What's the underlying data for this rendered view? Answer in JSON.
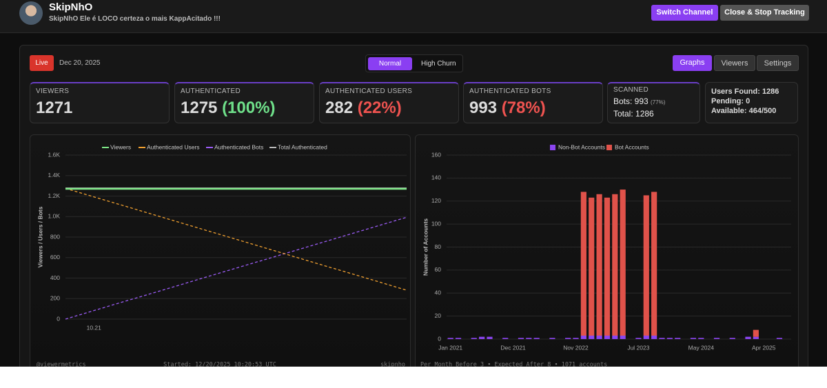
{
  "header": {
    "name": "SkipNhO",
    "subtitle": "SkipNhO Ele é LOCO certeza o mais KappAcitado !!!",
    "buttons": [
      "Switch Channel",
      "Close & Stop Tracking"
    ]
  },
  "toolbar": {
    "status": "Live",
    "date": "Dec 20, 2025",
    "modes": [
      "Normal",
      "High Churn"
    ],
    "tabs": [
      "Graphs",
      "Viewers",
      "Settings"
    ]
  },
  "stats": {
    "viewers": {
      "label": "VIEWERS",
      "value": 1271
    },
    "authenticated": {
      "label": "AUTHENTICATED",
      "value": 1275,
      "percent": "(100%)"
    },
    "authenticated_users": {
      "label": "AUTHENTICATED USERS",
      "value": 282,
      "percent": "(22%)"
    },
    "authenticated_bots": {
      "label": "AUTHENTICATED BOTS",
      "value": 993,
      "percent": "(78%)"
    },
    "scanned": {
      "label": "SCANNED",
      "bots": "Bots: 993",
      "bots_percent": "(77%)",
      "total": "Total: 1286"
    },
    "queue": [
      "Users Found: 1286",
      "Pending: 0",
      "Available: 464/500"
    ]
  },
  "footers": {
    "line": [
      "@viewermetrics",
      "Started: 12/20/2025 10:20:53 UTC",
      "skipnho"
    ],
    "bar": "Per Month Before 3 • Expected After 8 • 1071 accounts"
  },
  "chart_data": [
    {
      "type": "line",
      "categories": [
        null,
        "10.21",
        null,
        null,
        null,
        null,
        null,
        null,
        null,
        null,
        null,
        null,
        null
      ],
      "series": [
        {
          "name": "Viewers",
          "color": "#7ee787",
          "dashed": false,
          "values": [
            1271,
            1271,
            1271,
            1271,
            1271,
            1271,
            1271,
            1271,
            1271,
            1271,
            1271,
            1271,
            1271
          ]
        },
        {
          "name": "Authenticated Users",
          "color": "#f0a030",
          "dashed": true,
          "values": [
            1275,
            1192,
            1110,
            1027,
            944,
            861,
            779,
            696,
            613,
            530,
            448,
            365,
            282
          ]
        },
        {
          "name": "Authenticated Bots",
          "color": "#9b5cf6",
          "dashed": true,
          "values": [
            0,
            83,
            166,
            248,
            331,
            414,
            497,
            579,
            662,
            745,
            828,
            910,
            993
          ]
        },
        {
          "name": "Total Authenticated",
          "color": "#bbbbbb",
          "dashed": false,
          "values": [
            1275,
            1275,
            1275,
            1275,
            1275,
            1275,
            1275,
            1275,
            1275,
            1275,
            1275,
            1275,
            1275
          ]
        }
      ],
      "ylim": [
        0,
        1600
      ],
      "yticks": [
        0,
        200,
        400,
        600,
        800,
        {
          "value": 1000,
          "label": "1.0K"
        },
        {
          "value": 1200,
          "label": "1.2K"
        },
        {
          "value": 1400,
          "label": "1.4K"
        },
        {
          "value": 1600,
          "label": "1.6K"
        }
      ],
      "y_label": "Viewers / Users / Bots",
      "grid": true,
      "legend": "top"
    },
    {
      "type": "bar",
      "stacked": true,
      "categories": [
        "Jan 2021",
        null,
        null,
        null,
        null,
        null,
        null,
        null,
        "Dec 2021",
        null,
        null,
        null,
        null,
        null,
        null,
        null,
        "Nov 2022",
        null,
        null,
        null,
        null,
        null,
        null,
        null,
        "Jul 2023",
        null,
        null,
        null,
        null,
        null,
        null,
        null,
        "May 2024",
        null,
        null,
        null,
        null,
        null,
        null,
        null,
        "Apr 2025",
        null,
        null,
        null
      ],
      "series": [
        {
          "name": "Non-Bot Accounts",
          "color": "#8b45f0",
          "values": [
            1,
            1,
            0,
            1,
            2,
            2,
            0,
            1,
            0,
            1,
            1,
            1,
            0,
            1,
            0,
            1,
            1,
            3,
            3,
            3,
            3,
            3,
            3,
            0,
            1,
            3,
            3,
            1,
            1,
            1,
            0,
            1,
            1,
            0,
            1,
            0,
            1,
            0,
            2,
            2,
            0,
            0,
            1,
            0
          ]
        },
        {
          "name": "Bot Accounts",
          "color": "#e0524a",
          "values": [
            0,
            0,
            0,
            0,
            0,
            0,
            0,
            0,
            0,
            0,
            0,
            0,
            0,
            0,
            0,
            0,
            0,
            125,
            120,
            123,
            120,
            123,
            127,
            0,
            0,
            122,
            125,
            0,
            0,
            0,
            0,
            0,
            0,
            0,
            0,
            0,
            0,
            0,
            0,
            6,
            0,
            0,
            0,
            0
          ]
        }
      ],
      "ylim": [
        0,
        160
      ],
      "yticks": [
        0,
        20,
        40,
        60,
        80,
        100,
        120,
        140,
        160
      ],
      "y_label": "Number of Accounts",
      "grid": true,
      "legend": "top"
    }
  ]
}
